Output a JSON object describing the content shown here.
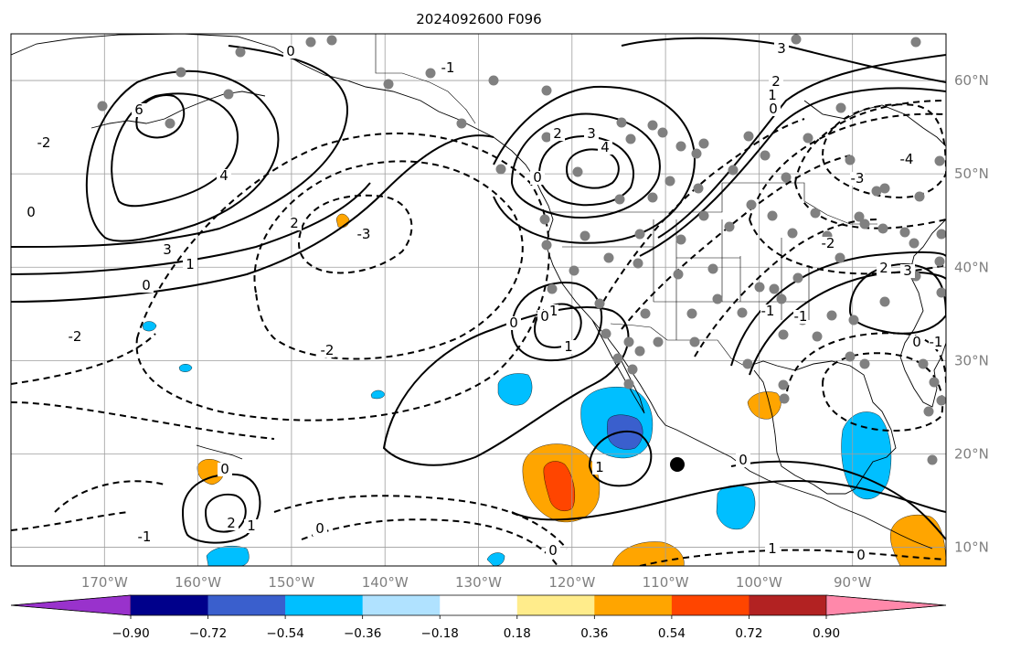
{
  "title": "2024092600 F096",
  "map": {
    "extent": {
      "lon_min": -180,
      "lon_max": -80,
      "lat_min": 8,
      "lat_max": 65
    },
    "lon_labels": [
      "170°W",
      "160°W",
      "150°W",
      "140°W",
      "130°W",
      "120°W",
      "110°W",
      "100°W",
      "90°W"
    ],
    "lat_labels": [
      "60°N",
      "50°N",
      "40°N",
      "30°N",
      "20°N",
      "10°N"
    ],
    "grid": true
  },
  "colorbar": {
    "tick_labels": [
      "−0.90",
      "−0.72",
      "−0.54",
      "−0.36",
      "−0.18",
      "0.18",
      "0.36",
      "0.54",
      "0.72",
      "0.90"
    ],
    "colors": [
      "#9932cc",
      "#00008b",
      "#3a5fcd",
      "#00bfff",
      "#b0e2ff",
      "#ffffff",
      "#ffec8b",
      "#ffa500",
      "#ff4500",
      "#b22222",
      "#ff88aa"
    ],
    "extend": "both"
  },
  "contour_labels": [
    {
      "text": "6"
    },
    {
      "text": "4"
    },
    {
      "text": "3"
    },
    {
      "text": "1"
    },
    {
      "text": "0"
    },
    {
      "text": "0"
    },
    {
      "text": "2"
    },
    {
      "text": "-3"
    },
    {
      "text": "-2"
    },
    {
      "text": "-2"
    },
    {
      "text": "-1"
    },
    {
      "text": "0"
    },
    {
      "text": "2"
    },
    {
      "text": "3"
    },
    {
      "text": "4"
    },
    {
      "text": "0"
    },
    {
      "text": "2"
    },
    {
      "text": "1"
    },
    {
      "text": "0"
    },
    {
      "text": "3"
    },
    {
      "text": "-4"
    },
    {
      "text": "-3"
    },
    {
      "text": "-2"
    },
    {
      "text": "-1"
    },
    {
      "text": "0"
    },
    {
      "text": "2"
    },
    {
      "text": "3"
    },
    {
      "text": "1"
    },
    {
      "text": "0"
    },
    {
      "text": "-1"
    },
    {
      "text": "1"
    },
    {
      "text": "0"
    },
    {
      "text": "0"
    },
    {
      "text": "-1"
    },
    {
      "text": "1"
    },
    {
      "text": "0"
    },
    {
      "text": "0"
    },
    {
      "text": "2"
    },
    {
      "text": "1"
    },
    {
      "text": "0"
    },
    {
      "text": "-2"
    },
    {
      "text": "-1"
    },
    {
      "text": "-1"
    },
    {
      "text": "0"
    }
  ],
  "shaded_regions": [
    {
      "name": "anomaly-yellow-gulf",
      "color": "#ffa500"
    },
    {
      "name": "anomaly-blue-baja",
      "color": "#00bfff"
    }
  ],
  "marker": {
    "name": "black-dot",
    "color": "#000000"
  },
  "colors": {
    "station": "#808080",
    "grid": "#9e9e9e",
    "tick_text": "#7f7f7f"
  }
}
